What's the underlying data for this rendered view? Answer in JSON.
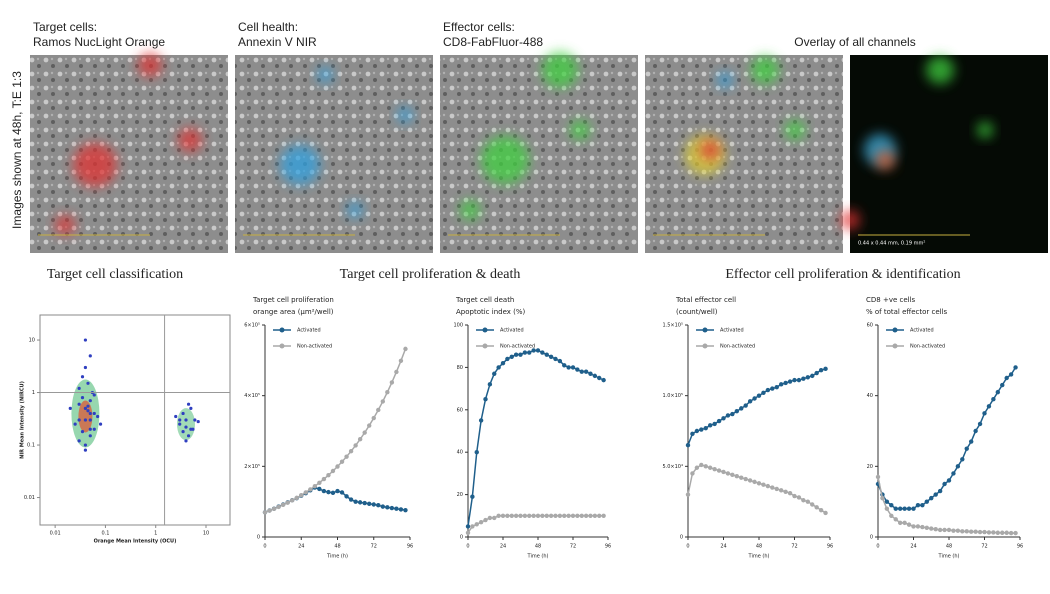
{
  "side_label": "Images shown at 48h, T:E 1:3",
  "images": [
    {
      "line1": "Target cells:",
      "line2": "Ramos NucLight Orange"
    },
    {
      "line1": "Cell health:",
      "line2": "Annexin V NIR"
    },
    {
      "line1": "Effector cells:",
      "line2": "CD8-FabFluor-488"
    }
  ],
  "overlay_label": "Overlay of all channels",
  "scale_text": "0.44 x 0.44 mm, 0.19 mm²",
  "sections": [
    "Target cell proliferation & death",
    "Effector cell proliferation & identification"
  ],
  "chart_data": [
    {
      "type": "scatter",
      "title": "Target cell classification",
      "xlabel": "Orange Mean Intensity (OCU)",
      "ylabel": "NIR Mean Intensity (NIRCU)",
      "log": true,
      "xlim": [
        0.005,
        30
      ],
      "ylim": [
        0.003,
        30
      ],
      "xticks": [
        0.01,
        0.1,
        1,
        10
      ],
      "yticks": [
        0.01,
        0.1,
        1,
        10
      ],
      "gates": {
        "x": 1.5,
        "y": 1
      },
      "series": [
        {
          "color": "#2f3fc0",
          "x": [
            0.03,
            0.04,
            0.05,
            0.035,
            0.045,
            0.06,
            0.025,
            0.04,
            0.05,
            0.03,
            0.07,
            0.04,
            0.05,
            0.035,
            0.045,
            0.03,
            0.055,
            0.04,
            0.06,
            0.05,
            0.02,
            0.08,
            0.04,
            0.03,
            0.05,
            0.045,
            0.035,
            0.06,
            0.04,
            0.05,
            3,
            4,
            5,
            3.5,
            4.5,
            6,
            2.5,
            4,
            5,
            3.5,
            7,
            4,
            4.5,
            3,
            5.5
          ],
          "y": [
            0.3,
            0.5,
            0.2,
            0.8,
            1.5,
            0.4,
            0.25,
            3,
            0.15,
            0.6,
            0.35,
            0.1,
            0.7,
            2,
            0.45,
            0.12,
            1,
            0.3,
            0.2,
            5,
            0.5,
            0.25,
            0.08,
            1.2,
            0.4,
            0.55,
            0.18,
            0.9,
            10,
            0.3,
            0.25,
            0.3,
            0.2,
            0.4,
            0.15,
            0.3,
            0.35,
            0.22,
            0.5,
            0.18,
            0.28,
            0.12,
            0.6,
            0.3,
            0.2
          ]
        }
      ]
    },
    {
      "type": "line",
      "title": "Target cell proliferation",
      "subtitle": "orange area (µm²/well)",
      "xlabel": "Time (h)",
      "xlim": [
        0,
        96
      ],
      "xticks": [
        0,
        24,
        48,
        72,
        96
      ],
      "ylim": [
        0,
        600000
      ],
      "yticks": [
        0,
        {
          "value": 200000,
          "label": "2×10⁵"
        },
        {
          "value": 400000,
          "label": "4×10⁵"
        },
        {
          "value": 600000,
          "label": "6×10⁵"
        }
      ],
      "x": [
        0,
        3,
        6,
        9,
        12,
        15,
        18,
        21,
        24,
        27,
        30,
        33,
        36,
        39,
        42,
        45,
        48,
        51,
        54,
        57,
        60,
        63,
        66,
        69,
        72,
        75,
        78,
        81,
        84,
        87,
        90,
        93
      ],
      "series": [
        {
          "name": "Activated",
          "color": "#1f5f8b",
          "values": [
            70000,
            75000,
            80000,
            86000,
            92000,
            98000,
            104000,
            110000,
            117000,
            124000,
            132000,
            140000,
            136000,
            130000,
            127000,
            125000,
            130000,
            126000,
            115000,
            106000,
            100000,
            98000,
            96000,
            94000,
            92000,
            90000,
            86000,
            84000,
            82000,
            80000,
            78000,
            76000
          ]
        },
        {
          "name": "Non-activated",
          "color": "#a9a9a9",
          "values": [
            70000,
            74700,
            79800,
            85200,
            91000,
            97100,
            103700,
            110700,
            118200,
            126200,
            134700,
            143800,
            153500,
            163900,
            175000,
            186800,
            199500,
            213000,
            227400,
            242800,
            259200,
            276700,
            295400,
            315400,
            336700,
            359500,
            383800,
            409800,
            437500,
            467100,
            498700,
            532400
          ]
        }
      ]
    },
    {
      "type": "line",
      "title": "Target cell death",
      "subtitle": "Apoptotic index (%)",
      "xlabel": "Time (h)",
      "xlim": [
        0,
        96
      ],
      "xticks": [
        0,
        24,
        48,
        72,
        96
      ],
      "ylim": [
        0,
        100
      ],
      "yticks": [
        0,
        20,
        40,
        60,
        80,
        100
      ],
      "x": [
        0,
        3,
        6,
        9,
        12,
        15,
        18,
        21,
        24,
        27,
        30,
        33,
        36,
        39,
        42,
        45,
        48,
        51,
        54,
        57,
        60,
        63,
        66,
        69,
        72,
        75,
        78,
        81,
        84,
        87,
        90,
        93
      ],
      "series": [
        {
          "name": "Activated",
          "color": "#1f5f8b",
          "values": [
            5,
            19,
            40,
            55,
            65,
            72,
            77,
            80,
            82,
            84,
            85,
            86,
            86,
            87,
            87,
            88,
            88,
            87,
            86,
            85,
            84,
            83,
            81,
            80,
            80,
            79,
            78,
            78,
            77,
            76,
            75,
            74
          ]
        },
        {
          "name": "Non-activated",
          "color": "#a9a9a9",
          "values": [
            2,
            5,
            6,
            7,
            8,
            9,
            9,
            10,
            10,
            10,
            10,
            10,
            10,
            10,
            10,
            10,
            10,
            10,
            10,
            10,
            10,
            10,
            10,
            10,
            10,
            10,
            10,
            10,
            10,
            10,
            10,
            10
          ]
        }
      ]
    },
    {
      "type": "line",
      "title": "Total effector cell",
      "subtitle": "(count/well)",
      "xlabel": "Time (h)",
      "xlim": [
        0,
        96
      ],
      "xticks": [
        0,
        24,
        48,
        72,
        96
      ],
      "ylim": [
        0,
        150000
      ],
      "yticks": [
        0,
        {
          "value": 50000,
          "label": "5.0×10⁴"
        },
        {
          "value": 100000,
          "label": "1.0×10⁵"
        },
        {
          "value": 150000,
          "label": "1.5×10⁵"
        }
      ],
      "x": [
        0,
        3,
        6,
        9,
        12,
        15,
        18,
        21,
        24,
        27,
        30,
        33,
        36,
        39,
        42,
        45,
        48,
        51,
        54,
        57,
        60,
        63,
        66,
        69,
        72,
        75,
        78,
        81,
        84,
        87,
        90,
        93
      ],
      "series": [
        {
          "name": "Activated",
          "color": "#1f5f8b",
          "values": [
            65000,
            73000,
            75000,
            76000,
            77000,
            79000,
            80000,
            82000,
            84000,
            86000,
            87000,
            89000,
            91000,
            93000,
            96000,
            98000,
            100000,
            102000,
            104000,
            105000,
            106000,
            108000,
            109000,
            110000,
            111000,
            111000,
            112000,
            113000,
            114000,
            116000,
            118000,
            119000
          ]
        },
        {
          "name": "Non-activated",
          "color": "#a9a9a9",
          "values": [
            30000,
            45000,
            49000,
            51000,
            50000,
            49000,
            48000,
            47000,
            46000,
            45000,
            44000,
            43000,
            42000,
            41000,
            40000,
            39000,
            38000,
            37000,
            36000,
            35000,
            34000,
            33000,
            32000,
            31000,
            29000,
            28000,
            26000,
            25000,
            23000,
            21000,
            19000,
            17000
          ]
        }
      ]
    },
    {
      "type": "line",
      "title": "CD8 +ve cells",
      "subtitle": "% of total effector cells",
      "xlabel": "Time (h)",
      "xlim": [
        0,
        96
      ],
      "xticks": [
        0,
        24,
        48,
        72,
        96
      ],
      "ylim": [
        0,
        60
      ],
      "yticks": [
        0,
        20,
        40,
        60
      ],
      "x": [
        0,
        3,
        6,
        9,
        12,
        15,
        18,
        21,
        24,
        27,
        30,
        33,
        36,
        39,
        42,
        45,
        48,
        51,
        54,
        57,
        60,
        63,
        66,
        69,
        72,
        75,
        78,
        81,
        84,
        87,
        90,
        93
      ],
      "series": [
        {
          "name": "Activated",
          "color": "#1f5f8b",
          "values": [
            15,
            12,
            10,
            9,
            8,
            8,
            8,
            8,
            8,
            9,
            9,
            10,
            11,
            12,
            13,
            15,
            16,
            18,
            20,
            22,
            25,
            27,
            30,
            32,
            35,
            37,
            39,
            41,
            43,
            45,
            46,
            48
          ]
        },
        {
          "name": "Non-activated",
          "color": "#a9a9a9",
          "values": [
            17,
            11,
            8,
            6,
            5,
            4,
            4,
            3.5,
            3,
            3,
            2.8,
            2.6,
            2.4,
            2.2,
            2,
            2,
            2,
            1.8,
            1.8,
            1.6,
            1.6,
            1.5,
            1.5,
            1.4,
            1.4,
            1.3,
            1.3,
            1.2,
            1.2,
            1.2,
            1.1,
            1.1
          ]
        }
      ]
    }
  ]
}
